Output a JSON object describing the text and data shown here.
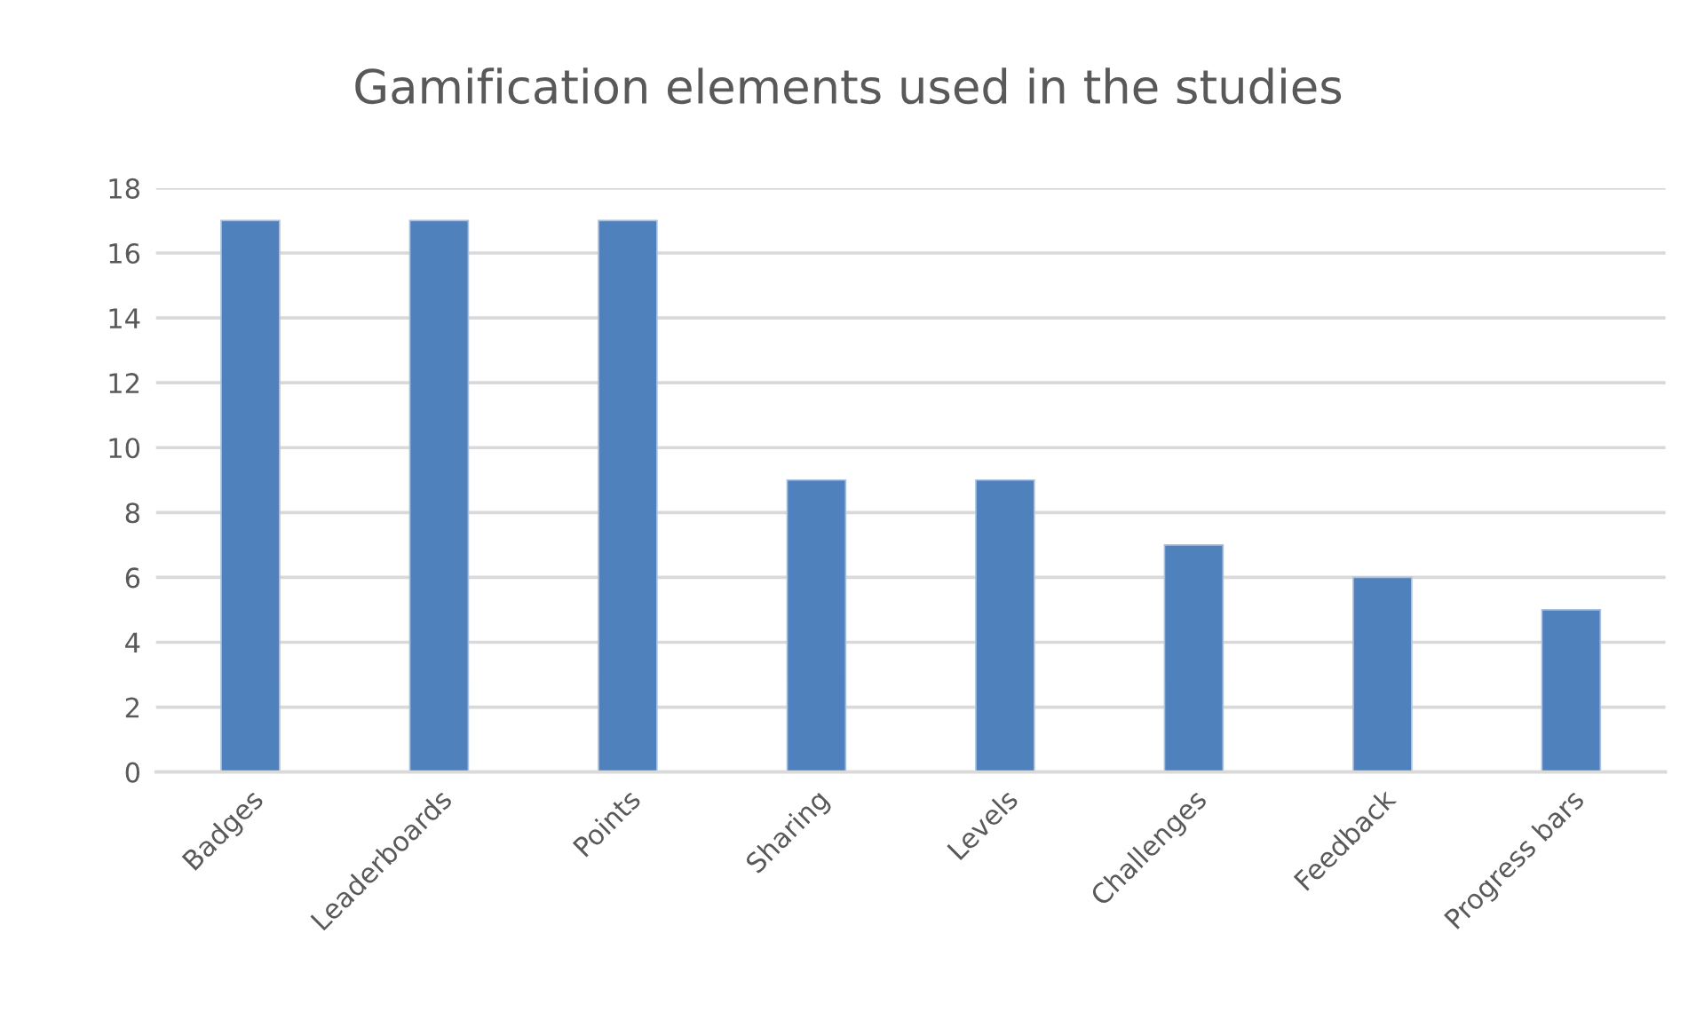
{
  "chart_data": {
    "type": "bar",
    "title": "Gamification elements used in the studies",
    "categories": [
      "Badges",
      "Leaderboards",
      "Points",
      "Sharing",
      "Levels",
      "Challenges",
      "Feedback",
      "Progress bars"
    ],
    "values": [
      17,
      17,
      17,
      9,
      9,
      7,
      6,
      5
    ],
    "color": "#4f81bd",
    "ylim": [
      0,
      18
    ],
    "yticks": [
      0,
      2,
      4,
      6,
      8,
      10,
      12,
      14,
      16,
      18
    ],
    "grid": "y",
    "legend": false
  }
}
